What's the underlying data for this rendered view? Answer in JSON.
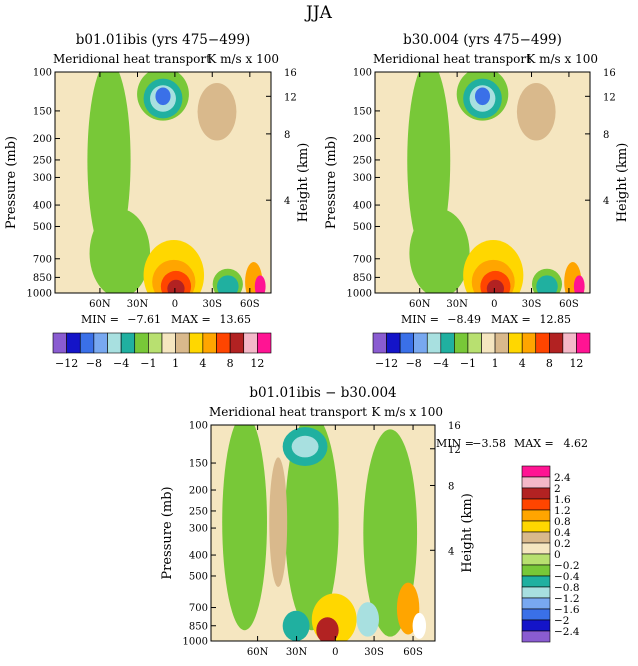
{
  "main_title": "JJA",
  "chart_data": [
    {
      "type": "heatmap",
      "title": "b01.01ibis (yrs 475−499)",
      "subtitle_left": "Meridional heat transport",
      "subtitle_right": "K m/s x 100",
      "ylabel": "Pressure (mb)",
      "ylabel_right": "Height (km)",
      "x_ticks": [
        "60N",
        "30N",
        "0",
        "30S",
        "60S"
      ],
      "y_ticks": [
        "100",
        "150",
        "200",
        "250",
        "300",
        "400",
        "500",
        "700",
        "850",
        "1000"
      ],
      "height_ticks": [
        "16",
        "12",
        "8",
        "4"
      ],
      "stats": {
        "min_label": "MIN =",
        "min": "−7.61",
        "max_label": "MAX =",
        "max": "13.65"
      }
    },
    {
      "type": "heatmap",
      "title": "b30.004 (yrs 475−499)",
      "subtitle_left": "Meridional heat transport",
      "subtitle_right": "K m/s x 100",
      "ylabel": "Pressure (mb)",
      "ylabel_right": "Height (km)",
      "x_ticks": [
        "60N",
        "30N",
        "0",
        "30S",
        "60S"
      ],
      "y_ticks": [
        "100",
        "150",
        "200",
        "250",
        "300",
        "400",
        "500",
        "700",
        "850",
        "1000"
      ],
      "height_ticks": [
        "16",
        "12",
        "8",
        "4"
      ],
      "stats": {
        "min_label": "MIN =",
        "min": "−8.49",
        "max_label": "MAX =",
        "max": "12.85"
      }
    },
    {
      "type": "heatmap",
      "title": "b01.01ibis − b30.004",
      "subtitle_left": "Meridional heat transport",
      "subtitle_right": "K m/s x 100",
      "ylabel": "Pressure (mb)",
      "ylabel_right": "Height (km)",
      "x_ticks": [
        "60N",
        "30N",
        "0",
        "30S",
        "60S"
      ],
      "y_ticks": [
        "100",
        "150",
        "200",
        "250",
        "300",
        "400",
        "500",
        "700",
        "850",
        "1000"
      ],
      "height_ticks": [
        "16",
        "12",
        "8",
        "4"
      ],
      "stats": {
        "min_label": "MIN =",
        "min": "−3.58",
        "max_label": "MAX =",
        "max": "4.62"
      }
    }
  ],
  "colorbar_top": {
    "colors": [
      "#8a5cd1",
      "#1414c8",
      "#3a70e8",
      "#78a8f0",
      "#a8e0e0",
      "#20b0a0",
      "#78c838",
      "#b8e070",
      "#f5e6c0",
      "#d9b98c",
      "#ffd700",
      "#ffa500",
      "#ff4500",
      "#b22222",
      "#f4b8c8",
      "#ff1493"
    ],
    "labels": [
      "−12",
      "−8",
      "−4",
      "−1",
      "1",
      "4",
      "8",
      "12"
    ]
  },
  "colorbar_diff": {
    "colors": [
      "#8a5cd1",
      "#1414c8",
      "#3a70e8",
      "#78a8f0",
      "#a8e0e0",
      "#20b0a0",
      "#78c838",
      "#b8e070",
      "#f5e6c0",
      "#d9b98c",
      "#ffd700",
      "#ffa500",
      "#ff4500",
      "#b22222",
      "#f4b8c8",
      "#ff1493"
    ],
    "labels": [
      "−2.4",
      "−2",
      "−1.6",
      "−1.2",
      "−0.8",
      "−0.4",
      "−0.2",
      "0",
      "0.2",
      "0.4",
      "0.8",
      "1.2",
      "1.6",
      "2",
      "2.4"
    ]
  }
}
